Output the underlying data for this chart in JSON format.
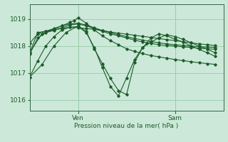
{
  "bg_color": "#cce8d8",
  "grid_color": "#99ccaa",
  "line_color": "#1a5c2a",
  "xlabel": "Pression niveau de la mer( hPa )",
  "yticks": [
    1016,
    1017,
    1018,
    1019
  ],
  "ylim": [
    1015.6,
    1019.55
  ],
  "xlim": [
    0,
    24
  ],
  "ven_x": 6.0,
  "sam_x": 18.0,
  "lines": [
    {
      "x": [
        0,
        1,
        2,
        3,
        4,
        5,
        6,
        7,
        8,
        9,
        10,
        11,
        12,
        13,
        14,
        15,
        16,
        17,
        18,
        19,
        20,
        21,
        22,
        23
      ],
      "y": [
        1017.75,
        1018.5,
        1018.55,
        1018.6,
        1018.65,
        1018.7,
        1018.68,
        1018.65,
        1018.62,
        1018.58,
        1018.52,
        1018.48,
        1018.44,
        1018.4,
        1018.36,
        1018.32,
        1018.28,
        1018.24,
        1018.2,
        1018.16,
        1018.12,
        1018.08,
        1018.05,
        1018.02
      ]
    },
    {
      "x": [
        0,
        1.5,
        3,
        4,
        5,
        5.5,
        6,
        7,
        8,
        9,
        10,
        11,
        12,
        13,
        14,
        15,
        16,
        17,
        18,
        19,
        20,
        21,
        22,
        23
      ],
      "y": [
        1017.75,
        1018.45,
        1018.62,
        1018.75,
        1018.88,
        1018.95,
        1019.05,
        1018.85,
        1018.6,
        1018.38,
        1018.2,
        1018.05,
        1017.9,
        1017.8,
        1017.72,
        1017.65,
        1017.6,
        1017.55,
        1017.5,
        1017.46,
        1017.42,
        1017.38,
        1017.35,
        1017.32
      ]
    },
    {
      "x": [
        0,
        1.5,
        3,
        4.5,
        6,
        7,
        8,
        9,
        10,
        11,
        12,
        13,
        14,
        14.5,
        15,
        16,
        17,
        18,
        19,
        20,
        21,
        22,
        23
      ],
      "y": [
        1016.85,
        1017.3,
        1018.0,
        1018.5,
        1018.75,
        1018.55,
        1017.9,
        1017.35,
        1016.8,
        1016.35,
        1016.2,
        1017.4,
        1017.95,
        1018.1,
        1018.3,
        1018.45,
        1018.38,
        1018.25,
        1018.15,
        1018.0,
        1017.88,
        1017.75,
        1017.62
      ]
    },
    {
      "x": [
        0,
        1,
        2,
        3,
        4,
        5,
        6,
        7,
        8,
        9,
        10,
        11,
        12,
        13,
        14,
        15,
        16,
        17,
        18,
        19,
        20,
        21,
        22,
        23
      ],
      "y": [
        1016.85,
        1017.45,
        1018.0,
        1018.35,
        1018.6,
        1018.7,
        1018.72,
        1018.5,
        1017.95,
        1017.2,
        1016.5,
        1016.15,
        1016.82,
        1017.5,
        1017.95,
        1018.15,
        1018.3,
        1018.42,
        1018.35,
        1018.25,
        1018.12,
        1018.0,
        1017.88,
        1017.75
      ]
    },
    {
      "x": [
        0,
        1,
        2,
        3,
        4,
        5,
        6,
        7,
        8,
        9,
        10,
        11,
        12,
        13,
        14,
        15,
        16,
        17,
        18,
        19,
        20,
        21,
        22,
        23
      ],
      "y": [
        1018.1,
        1018.45,
        1018.55,
        1018.65,
        1018.75,
        1018.82,
        1018.85,
        1018.78,
        1018.68,
        1018.58,
        1018.5,
        1018.42,
        1018.35,
        1018.28,
        1018.22,
        1018.17,
        1018.12,
        1018.08,
        1018.05,
        1018.02,
        1018.0,
        1017.98,
        1017.96,
        1017.95
      ]
    },
    {
      "x": [
        0,
        1,
        2,
        3,
        4,
        5,
        6,
        7,
        8,
        9,
        10,
        11,
        12,
        13,
        14,
        15,
        16,
        17,
        18,
        19,
        20,
        21,
        22,
        23
      ],
      "y": [
        1017.7,
        1018.3,
        1018.5,
        1018.58,
        1018.68,
        1018.78,
        1018.82,
        1018.75,
        1018.65,
        1018.55,
        1018.45,
        1018.38,
        1018.3,
        1018.22,
        1018.15,
        1018.1,
        1018.05,
        1018.02,
        1018.0,
        1017.97,
        1017.95,
        1017.92,
        1017.9,
        1017.88
      ]
    }
  ]
}
